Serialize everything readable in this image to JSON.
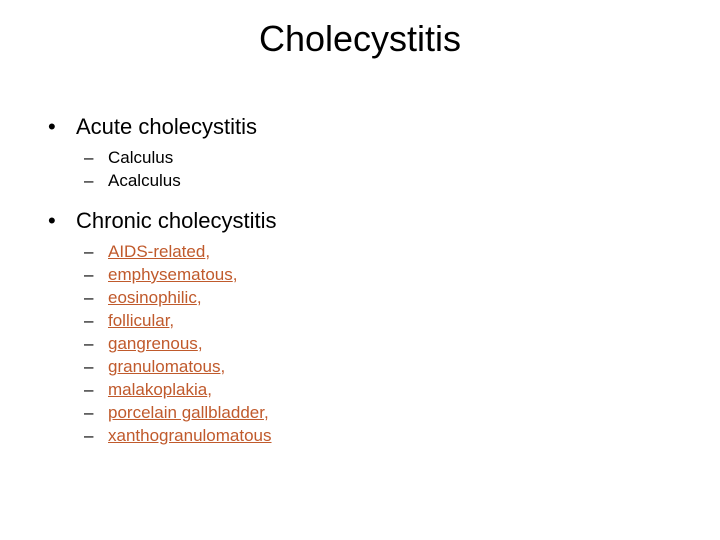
{
  "title": "Cholecystitis",
  "colors": {
    "background": "#ffffff",
    "text": "#000000",
    "link": "#c05a2c"
  },
  "typography": {
    "title_fontsize": 36,
    "level1_fontsize": 22,
    "level2_fontsize": 17,
    "font_family": "Arial"
  },
  "sections": [
    {
      "label": "Acute cholecystitis",
      "items": [
        {
          "text": "Calculus",
          "is_link": false,
          "trailing": ""
        },
        {
          "text": "Acalculus",
          "is_link": false,
          "trailing": ""
        }
      ]
    },
    {
      "label": "Chronic cholecystitis",
      "items": [
        {
          "text": "AIDS-related",
          "is_link": true,
          "trailing": ","
        },
        {
          "text": "emphysematous",
          "is_link": true,
          "trailing": ","
        },
        {
          "text": "eosinophilic",
          "is_link": true,
          "trailing": ","
        },
        {
          "text": "follicular",
          "is_link": true,
          "trailing": ","
        },
        {
          "text": "gangrenous",
          "is_link": true,
          "trailing": ","
        },
        {
          "text": "granulomatous",
          "is_link": true,
          "trailing": ","
        },
        {
          "text": "malakoplakia",
          "is_link": true,
          "trailing": ","
        },
        {
          "text": "porcelain gallbladder",
          "is_link": true,
          "trailing": ","
        },
        {
          "text": "xanthogranulomatous",
          "is_link": true,
          "trailing": ""
        }
      ]
    }
  ]
}
